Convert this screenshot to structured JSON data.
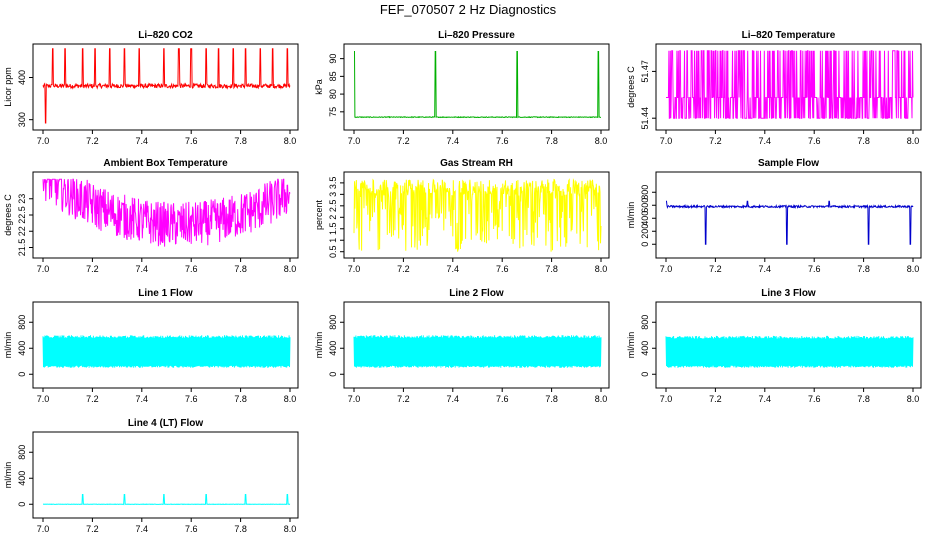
{
  "title": "FEF_070507  2 Hz Diagnostics",
  "chart_data": [
    {
      "type": "line",
      "title": "Li–820 CO2",
      "ylabel": "Licor ppm",
      "color": "#ff0000",
      "xlim": [
        7.0,
        8.0
      ],
      "ylim": [
        285,
        470
      ],
      "xticks": [
        7.0,
        7.2,
        7.4,
        7.6,
        7.8,
        8.0
      ],
      "yticks": [
        300,
        400
      ],
      "series": [
        {
          "baseline": 380,
          "noise": 5,
          "spikes_up": [
            7.04,
            7.09,
            7.16,
            7.21,
            7.27,
            7.33,
            7.39,
            7.49,
            7.55,
            7.6,
            7.66,
            7.71,
            7.77,
            7.82,
            7.88,
            7.93,
            7.99
          ],
          "spikes_down": [
            7.01,
            7.09,
            7.33,
            7.66,
            7.82,
            7.99
          ],
          "max": 468,
          "min": 292
        }
      ]
    },
    {
      "type": "line",
      "title": "Li–820 Pressure",
      "ylabel": "kPa",
      "color": "#00b000",
      "xlim": [
        7.0,
        8.0
      ],
      "ylim": [
        71,
        93
      ],
      "xticks": [
        7.0,
        7.2,
        7.4,
        7.6,
        7.8,
        8.0
      ],
      "yticks": [
        75,
        80,
        85,
        90
      ],
      "series": [
        {
          "baseline": 73.5,
          "noise": 0.1,
          "spikes_up": [
            7.0,
            7.33,
            7.66,
            7.99
          ],
          "spikes_down": [],
          "max": 92,
          "min": 73
        }
      ]
    },
    {
      "type": "line",
      "title": "Li–820 Temperature",
      "ylabel": "degrees C",
      "color": "#ff00ff",
      "xlim": [
        7.0,
        8.0
      ],
      "ylim": [
        51.435,
        51.485
      ],
      "xticks": [
        7.0,
        7.2,
        7.4,
        7.6,
        7.8,
        8.0
      ],
      "yticks": [
        51.44,
        51.47
      ],
      "series": [
        {
          "baseline": 51.44,
          "noise": 0,
          "levels": [
            51.44,
            51.4533,
            51.4833
          ],
          "max": 51.4833,
          "min": 51.44
        }
      ]
    },
    {
      "type": "line",
      "title": "Ambient Box Temperature",
      "ylabel": "degrees C",
      "color": "#ff00ff",
      "xlim": [
        7.0,
        8.0
      ],
      "ylim": [
        21.3,
        23.7
      ],
      "xticks": [
        7.0,
        7.2,
        7.4,
        7.6,
        7.8,
        8.0
      ],
      "yticks": [
        21.5,
        22.0,
        22.5,
        23.0
      ],
      "series": [
        {
          "baseline": 23.1,
          "noise": 0.6,
          "spikes_up": [],
          "spikes_down": [],
          "max": 23.6,
          "min": 21.4
        }
      ]
    },
    {
      "type": "line",
      "title": "Gas Stream RH",
      "ylabel": "percent",
      "color": "#ffff00",
      "xlim": [
        7.0,
        8.0
      ],
      "ylim": [
        0.4,
        3.8
      ],
      "xticks": [
        7.0,
        7.2,
        7.4,
        7.6,
        7.8,
        8.0
      ],
      "yticks": [
        0.5,
        1.0,
        1.5,
        2.0,
        2.5,
        3.0,
        3.5
      ],
      "series": [
        {
          "baseline": 3.3,
          "noise": 0.3,
          "spikes_up": [],
          "spikes_down": [],
          "max": 3.7,
          "min": 0.5
        }
      ]
    },
    {
      "type": "line",
      "title": "Sample Flow",
      "ylabel": "ml/min",
      "color": "#0000cc",
      "xlim": [
        7.0,
        8.0
      ],
      "ylim": [
        -150,
        1050
      ],
      "xticks": [
        7.0,
        7.2,
        7.4,
        7.6,
        7.8,
        8.0
      ],
      "yticks": [
        0,
        200,
        400,
        600,
        800
      ],
      "series": [
        {
          "baseline": 580,
          "noise": 15,
          "spikes_up": [
            7.0,
            7.33,
            7.66
          ],
          "spikes_down": [
            7.16,
            7.33,
            7.49,
            7.66,
            7.82,
            7.99
          ],
          "max": 660,
          "min": 0
        }
      ]
    },
    {
      "type": "line",
      "title": "Line 1 Flow",
      "ylabel": "ml/min",
      "color": "#00ffff",
      "xlim": [
        7.0,
        8.0
      ],
      "ylim": [
        -150,
        1050
      ],
      "xticks": [
        7.0,
        7.2,
        7.4,
        7.6,
        7.8,
        8.0
      ],
      "yticks": [
        0,
        400,
        800
      ],
      "series": [
        {
          "baseline": 580,
          "noise": 20,
          "spikes_up": [],
          "spikes_down": [],
          "max": 600,
          "min": 100
        }
      ]
    },
    {
      "type": "line",
      "title": "Line 2 Flow",
      "ylabel": "ml/min",
      "color": "#00ffff",
      "xlim": [
        7.0,
        8.0
      ],
      "ylim": [
        -150,
        1050
      ],
      "xticks": [
        7.0,
        7.2,
        7.4,
        7.6,
        7.8,
        8.0
      ],
      "yticks": [
        0,
        400,
        800
      ],
      "series": [
        {
          "baseline": 580,
          "noise": 20,
          "spikes_up": [],
          "spikes_down": [],
          "max": 600,
          "min": 100
        }
      ]
    },
    {
      "type": "line",
      "title": "Line 3 Flow",
      "ylabel": "ml/min",
      "color": "#00ffff",
      "xlim": [
        7.0,
        8.0
      ],
      "ylim": [
        -150,
        1050
      ],
      "xticks": [
        7.0,
        7.2,
        7.4,
        7.6,
        7.8,
        8.0
      ],
      "yticks": [
        0,
        400,
        800
      ],
      "series": [
        {
          "baseline": 570,
          "noise": 20,
          "spikes_up": [],
          "spikes_down": [],
          "max": 600,
          "min": 100
        }
      ]
    },
    {
      "type": "line",
      "title": "Line 4 (LT) Flow",
      "ylabel": "ml/min",
      "color": "#00ffff",
      "xlim": [
        7.0,
        8.0
      ],
      "ylim": [
        -150,
        1050
      ],
      "xticks": [
        7.0,
        7.2,
        7.4,
        7.6,
        7.8,
        8.0
      ],
      "yticks": [
        0,
        400,
        800
      ],
      "series": [
        {
          "baseline": 0,
          "noise": 3,
          "spikes_up": [
            7.16,
            7.33,
            7.49,
            7.66,
            7.82,
            7.99
          ],
          "spikes_down": [],
          "max": 150,
          "min": 0
        }
      ]
    }
  ]
}
